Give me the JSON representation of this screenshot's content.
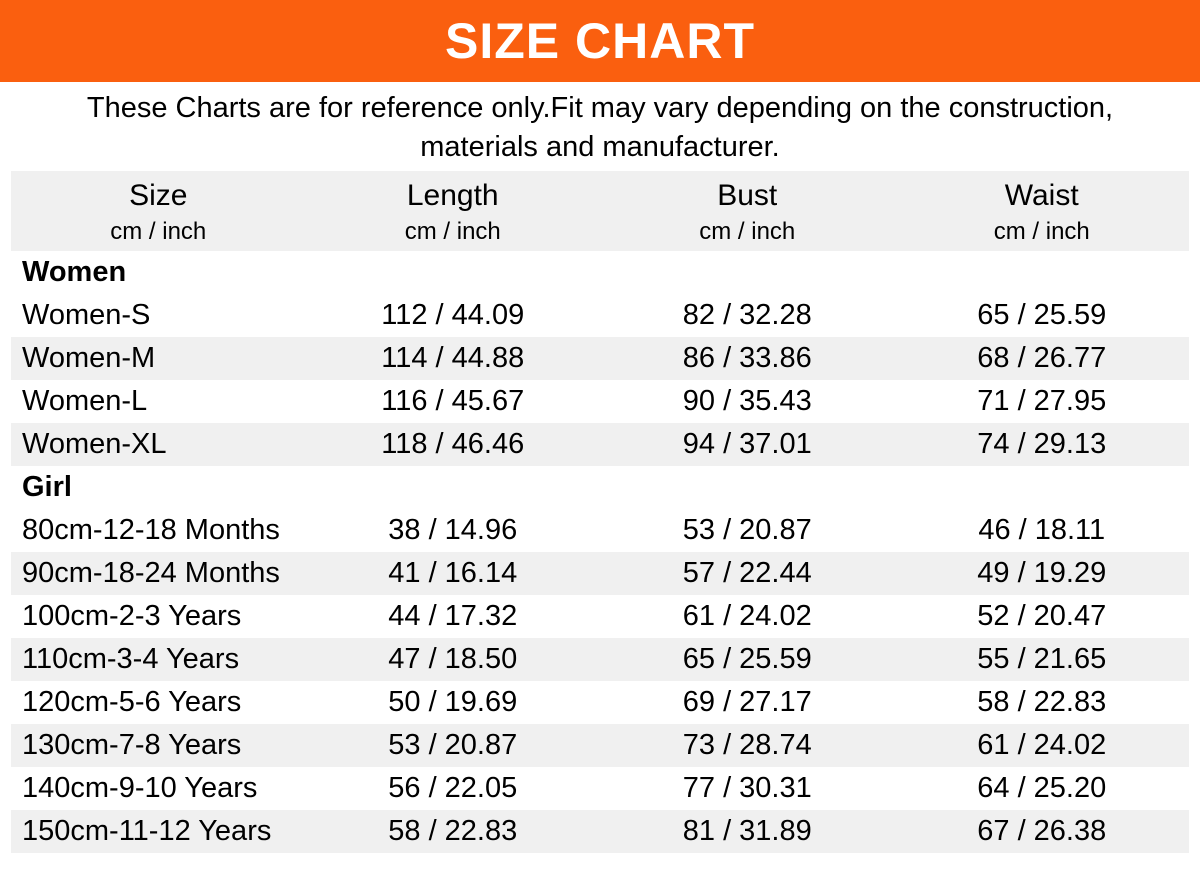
{
  "banner": {
    "title": "SIZE CHART",
    "bg_color": "#FA5F0F",
    "text_color": "#FFFFFF"
  },
  "disclaimer": {
    "line1": "These Charts are for reference only.Fit may vary depending on the construction,",
    "line2": "materials and manufacturer."
  },
  "table": {
    "stripe_color": "#F0F0F0",
    "header_bg_color": "#F0F0F0",
    "columns": [
      {
        "label": "Size",
        "unit": "cm / inch"
      },
      {
        "label": "Length",
        "unit": "cm / inch"
      },
      {
        "label": "Bust",
        "unit": "cm / inch"
      },
      {
        "label": "Waist",
        "unit": "cm / inch"
      }
    ],
    "rows": [
      {
        "type": "section",
        "shaded": false,
        "size": "Women"
      },
      {
        "type": "data",
        "shaded": false,
        "size": "Women-S",
        "length": "112 / 44.09",
        "bust": "82 / 32.28",
        "waist": "65 / 25.59"
      },
      {
        "type": "data",
        "shaded": true,
        "size": "Women-M",
        "length": "114 / 44.88",
        "bust": "86 / 33.86",
        "waist": "68 / 26.77"
      },
      {
        "type": "data",
        "shaded": false,
        "size": "Women-L",
        "length": "116 / 45.67",
        "bust": "90 / 35.43",
        "waist": "71 / 27.95"
      },
      {
        "type": "data",
        "shaded": true,
        "size": "Women-XL",
        "length": "118 / 46.46",
        "bust": "94 / 37.01",
        "waist": "74 / 29.13"
      },
      {
        "type": "section",
        "shaded": false,
        "size": "Girl"
      },
      {
        "type": "data",
        "shaded": false,
        "size": "80cm-12-18 Months",
        "length": "38 / 14.96",
        "bust": "53 / 20.87",
        "waist": "46 / 18.11"
      },
      {
        "type": "data",
        "shaded": true,
        "size": "90cm-18-24 Months",
        "length": "41 / 16.14",
        "bust": "57 / 22.44",
        "waist": "49 / 19.29"
      },
      {
        "type": "data",
        "shaded": false,
        "size": "100cm-2-3 Years",
        "length": "44 / 17.32",
        "bust": "61 / 24.02",
        "waist": "52 / 20.47"
      },
      {
        "type": "data",
        "shaded": true,
        "size": "110cm-3-4 Years",
        "length": "47 / 18.50",
        "bust": "65 / 25.59",
        "waist": "55 / 21.65"
      },
      {
        "type": "data",
        "shaded": false,
        "size": "120cm-5-6 Years",
        "length": "50 / 19.69",
        "bust": "69 / 27.17",
        "waist": "58 / 22.83"
      },
      {
        "type": "data",
        "shaded": true,
        "size": "130cm-7-8 Years",
        "length": "53 / 20.87",
        "bust": "73 / 28.74",
        "waist": "61 / 24.02"
      },
      {
        "type": "data",
        "shaded": false,
        "size": "140cm-9-10 Years",
        "length": "56 / 22.05",
        "bust": "77 / 30.31",
        "waist": "64 / 25.20"
      },
      {
        "type": "data",
        "shaded": true,
        "size": "150cm-11-12 Years",
        "length": "58 / 22.83",
        "bust": "81 / 31.89",
        "waist": "67 / 26.38"
      }
    ]
  }
}
